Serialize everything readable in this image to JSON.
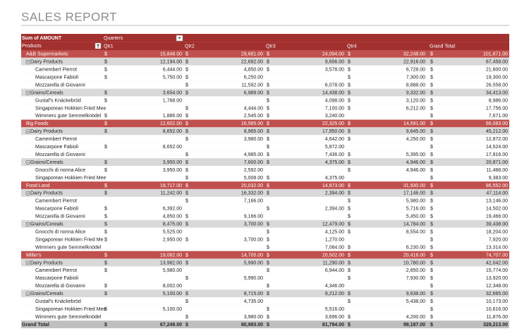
{
  "title": "SALES REPORT",
  "currency_symbol": "$",
  "table": {
    "corner": "Sum of AMOUNT",
    "column_field": "Quarters",
    "row_field": "Products",
    "columns": [
      "Qtr1",
      "Qtr2",
      "Qtr3",
      "Qtr4",
      "Grand Total"
    ],
    "rows": [
      {
        "level": "group",
        "label": "A&B Supermarkets",
        "cells": [
          "15,848.00",
          "29,681.00",
          "24,094.00",
          "32,248.00",
          "101,871.00"
        ]
      },
      {
        "level": "category",
        "label": "Dairy Products",
        "cells": [
          "12,194.00",
          "22,692.00",
          "9,656.00",
          "22,916.00",
          "67,458.00"
        ]
      },
      {
        "level": "item",
        "label": "Camembert Pierrot",
        "cells": [
          "6,444.00",
          "4,850.00",
          "3,578.00",
          "6,728.00",
          "21,600.00"
        ]
      },
      {
        "level": "item",
        "label": "Mascarpone Fabioli",
        "cells": [
          "5,750.00",
          "6,250.00",
          null,
          "7,300.00",
          "19,300.00"
        ]
      },
      {
        "level": "item",
        "label": "Mozzarella di Giovanni",
        "cells": [
          null,
          "11,592.00",
          "6,078.00",
          "8,888.00",
          "26,558.00"
        ]
      },
      {
        "level": "category",
        "label": "Grains/Cereals",
        "cells": [
          "3,654.00",
          "6,989.00",
          "14,438.00",
          "9,332.00",
          "34,413.00"
        ]
      },
      {
        "level": "item",
        "label": "Gustaf's Knäckebröd",
        "cells": [
          "1,768.00",
          null,
          "4,098.00",
          "3,120.00",
          "8,986.00"
        ]
      },
      {
        "level": "item",
        "label": "Singaporean Hokkien Fried Mee",
        "cells": [
          null,
          "4,444.00",
          "7,100.00",
          "6,212.00",
          "17,756.00"
        ]
      },
      {
        "level": "item",
        "label": "Wimmers gute Semmelknödel",
        "cells": [
          "1,886.00",
          "2,545.00",
          "3,240.00",
          null,
          "7,671.00"
        ]
      },
      {
        "level": "group",
        "label": "Big Foods",
        "cells": [
          "12,602.00",
          "16,565.00",
          "22,325.00",
          "14,591.00",
          "66,083.00"
        ]
      },
      {
        "level": "category",
        "label": "Dairy Products",
        "cells": [
          "8,652.00",
          "8,965.00",
          "17,950.00",
          "9,645.00",
          "45,212.00"
        ]
      },
      {
        "level": "item",
        "label": "Camembert Pierrot",
        "cells": [
          null,
          "3,980.00",
          "4,642.00",
          "4,250.00",
          "12,872.00"
        ]
      },
      {
        "level": "item",
        "label": "Mascarpone Fabioli",
        "cells": [
          "8,652.00",
          null,
          "5,872.00",
          null,
          "14,524.00"
        ]
      },
      {
        "level": "item",
        "label": "Mozzarella di Giovanni",
        "cells": [
          null,
          "4,985.00",
          "7,436.00",
          "5,395.00",
          "17,816.00"
        ]
      },
      {
        "level": "category",
        "label": "Grains/Cereals",
        "cells": [
          "3,950.00",
          "7,600.00",
          "4,375.00",
          "4,946.00",
          "20,871.00"
        ]
      },
      {
        "level": "item",
        "label": "Gnocchi di nonna Alice",
        "cells": [
          "3,950.00",
          "2,592.00",
          null,
          "4,946.00",
          "11,488.00"
        ]
      },
      {
        "level": "item",
        "label": "Singaporean Hokkien Fried Mee",
        "cells": [
          null,
          "5,008.00",
          "4,375.00",
          null,
          "9,383.00"
        ]
      },
      {
        "level": "group",
        "label": "Food Land",
        "cells": [
          "19,717.00",
          "20,032.00",
          "14,873.00",
          "31,930.00",
          "86,552.00"
        ]
      },
      {
        "level": "category",
        "label": "Dairy Products",
        "cells": [
          "11,242.00",
          "16,332.00",
          "2,394.00",
          "17,146.00",
          "47,114.00"
        ]
      },
      {
        "level": "item",
        "label": "Camembert Pierrot",
        "cells": [
          null,
          "7,166.00",
          null,
          "5,980.00",
          "13,146.00"
        ]
      },
      {
        "level": "item",
        "label": "Mascarpone Fabioli",
        "cells": [
          "6,392.00",
          null,
          "2,394.00",
          "5,716.00",
          "14,502.00"
        ]
      },
      {
        "level": "item",
        "label": "Mozzarella di Giovanni",
        "cells": [
          "4,850.00",
          "9,166.00",
          null,
          "5,450.00",
          "19,466.00"
        ]
      },
      {
        "level": "category",
        "label": "Grains/Cereals",
        "cells": [
          "8,475.00",
          "3,700.00",
          "12,479.00",
          "14,784.00",
          "39,438.00"
        ]
      },
      {
        "level": "item",
        "label": "Gnocchi di nonna Alice",
        "cells": [
          "5,525.00",
          null,
          "4,125.00",
          "8,554.00",
          "18,204.00"
        ]
      },
      {
        "level": "item",
        "label": "Singaporean Hokkien Fried Me",
        "cells": [
          "2,950.00",
          "3,700.00",
          "1,270.00",
          null,
          "7,920.00"
        ]
      },
      {
        "level": "item",
        "label": "Wimmers gute Semmelknödel",
        "cells": [
          null,
          null,
          "7,084.00",
          "6,230.00",
          "13,314.00"
        ]
      },
      {
        "level": "group",
        "label": "Miller's",
        "cells": [
          "19,082.00",
          "14,705.00",
          "20,502.00",
          "20,418.00",
          "74,707.00"
        ]
      },
      {
        "level": "category",
        "label": "Dairy Products",
        "cells": [
          "13,982.00",
          "5,990.00",
          "11,290.00",
          "10,780.00",
          "42,042.00"
        ]
      },
      {
        "level": "item",
        "label": "Camembert Pierrot",
        "cells": [
          "5,980.00",
          null,
          "6,944.00",
          "2,850.00",
          "15,774.00"
        ]
      },
      {
        "level": "item",
        "label": "Mascarpone Fabioli",
        "cells": [
          null,
          "5,990.00",
          null,
          "7,930.00",
          "13,920.00"
        ]
      },
      {
        "level": "item",
        "label": "Mozzarella di Giovanni",
        "cells": [
          "8,002.00",
          null,
          "4,346.00",
          null,
          "12,348.00"
        ]
      },
      {
        "level": "category",
        "label": "Grains/Cereals",
        "cells": [
          "5,100.00",
          "8,715.00",
          "9,212.00",
          "9,638.00",
          "32,665.00"
        ]
      },
      {
        "level": "item",
        "label": "Gustaf's Knäckebröd",
        "cells": [
          null,
          "4,735.00",
          null,
          "5,438.00",
          "10,173.00"
        ]
      },
      {
        "level": "item",
        "label": "Singaporean Hokkien Fried Mee",
        "cells": [
          "5,100.00",
          null,
          "5,516.00",
          null,
          "10,616.00"
        ]
      },
      {
        "level": "item",
        "label": "Wimmers gute Semmelknödel",
        "cells": [
          null,
          "3,980.00",
          "3,696.00",
          "4,200.00",
          "11,876.00"
        ]
      },
      {
        "level": "total",
        "label": "Grand Total",
        "cells": [
          "67,249.00",
          "80,983.00",
          "81,794.00",
          "99,187.00",
          "329,213.00"
        ]
      }
    ]
  }
}
